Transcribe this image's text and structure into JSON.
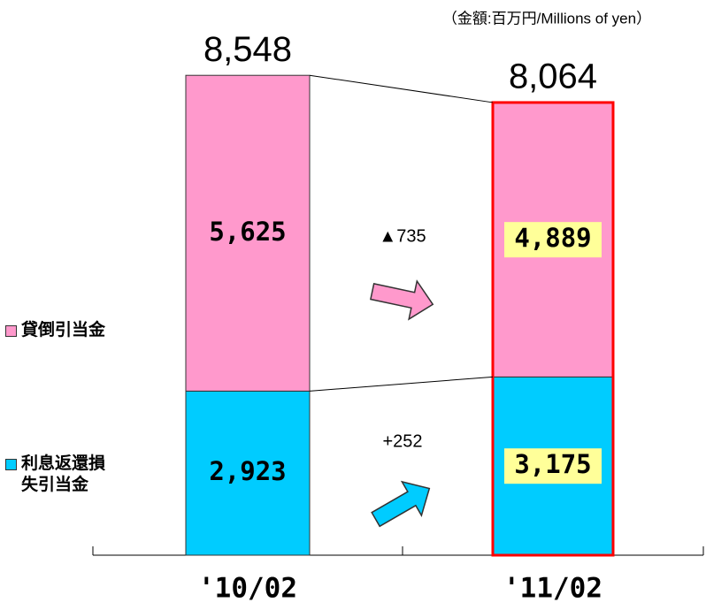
{
  "chart_data": {
    "type": "stacked-bar",
    "subtitle": "（金額:百万円/Millions of yen）",
    "categories": [
      "'10/02",
      "'11/02"
    ],
    "series": [
      {
        "name": "利息返還損失引当金",
        "color": "#00ccff",
        "values": [
          2923,
          3175
        ],
        "value_labels": [
          "2,923",
          "3,175"
        ]
      },
      {
        "name": "貸倒引当金",
        "color": "#ff99cc",
        "values": [
          5625,
          4889
        ],
        "value_labels": [
          "5,625",
          "4,889"
        ]
      }
    ],
    "totals": {
      "values": [
        8548,
        8064
      ],
      "value_labels": [
        "8,548",
        "8,064"
      ]
    },
    "changes": {
      "values": [
        252,
        -735
      ],
      "value_labels": [
        "+252",
        "▲735"
      ]
    }
  }
}
